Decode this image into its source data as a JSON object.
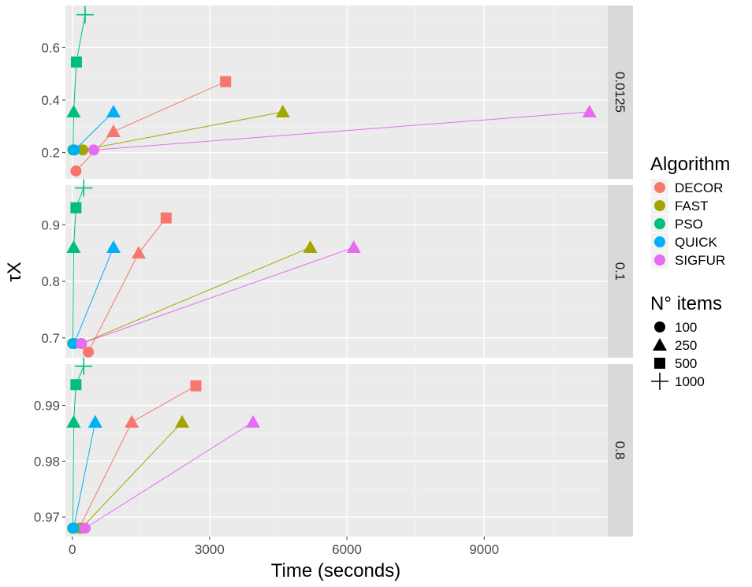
{
  "chart_data": {
    "type": "line",
    "xlabel": "Time (seconds)",
    "ylabel": "τX",
    "xlim": [
      -150,
      11700
    ],
    "x_ticks": [
      0,
      3000,
      6000,
      9000
    ],
    "x_tick_labels": [
      "0",
      "3000",
      "6000",
      "9000"
    ],
    "grid": true,
    "series_colors": {
      "DECOR": "#F8766D",
      "FAST": "#A3A500",
      "PSO": "#00BF7D",
      "QUICK": "#00B0F6",
      "SIGFUR": "#E76BF3"
    },
    "legends": [
      {
        "title": "Algorithm",
        "placement": "right",
        "entries": [
          {
            "label": "DECOR",
            "color": "#F8766D"
          },
          {
            "label": "FAST",
            "color": "#A3A500"
          },
          {
            "label": "PSO",
            "color": "#00BF7D"
          },
          {
            "label": "QUICK",
            "color": "#00B0F6"
          },
          {
            "label": "SIGFUR",
            "color": "#E76BF3"
          }
        ]
      },
      {
        "title": "N° items",
        "placement": "right",
        "entries": [
          {
            "label": "100",
            "shape": "circle"
          },
          {
            "label": "250",
            "shape": "triangle"
          },
          {
            "label": "500",
            "shape": "square"
          },
          {
            "label": "1000",
            "shape": "plus"
          }
        ]
      }
    ],
    "panels": [
      {
        "strip": "0.0125",
        "ylim": [
          0.1,
          0.76
        ],
        "y_ticks": [
          0.2,
          0.4,
          0.6
        ],
        "y_tick_labels": [
          "0.2",
          "0.4",
          "0.6"
        ],
        "series": [
          {
            "name": "DECOR",
            "points": [
              [
                80,
                0.13,
                "100"
              ],
              [
                900,
                0.28,
                "250"
              ],
              [
                3350,
                0.47,
                "500"
              ]
            ]
          },
          {
            "name": "FAST",
            "points": [
              [
                230,
                0.21,
                "100"
              ],
              [
                4600,
                0.355,
                "250"
              ]
            ]
          },
          {
            "name": "PSO",
            "points": [
              [
                15,
                0.21,
                "100"
              ],
              [
                30,
                0.355,
                "250"
              ],
              [
                90,
                0.545,
                "500"
              ],
              [
                280,
                0.725,
                "1000"
              ]
            ]
          },
          {
            "name": "QUICK",
            "points": [
              [
                50,
                0.21,
                "100"
              ],
              [
                900,
                0.355,
                "250"
              ]
            ]
          },
          {
            "name": "SIGFUR",
            "points": [
              [
                470,
                0.21,
                "100"
              ],
              [
                11300,
                0.355,
                "250"
              ]
            ]
          }
        ]
      },
      {
        "strip": "0.1",
        "ylim": [
          0.665,
          0.97
        ],
        "y_ticks": [
          0.7,
          0.8,
          0.9
        ],
        "y_tick_labels": [
          "0.7",
          "0.8",
          "0.9"
        ],
        "series": [
          {
            "name": "DECOR",
            "points": [
              [
                350,
                0.675,
                "100"
              ],
              [
                1450,
                0.85,
                "250"
              ],
              [
                2050,
                0.912,
                "500"
              ]
            ]
          },
          {
            "name": "FAST",
            "points": [
              [
                200,
                0.69,
                "100"
              ],
              [
                5200,
                0.86,
                "250"
              ]
            ]
          },
          {
            "name": "PSO",
            "points": [
              [
                10,
                0.69,
                "100"
              ],
              [
                30,
                0.86,
                "250"
              ],
              [
                80,
                0.93,
                "500"
              ],
              [
                250,
                0.965,
                "1000"
              ]
            ]
          },
          {
            "name": "QUICK",
            "points": [
              [
                40,
                0.69,
                "100"
              ],
              [
                900,
                0.86,
                "250"
              ]
            ]
          },
          {
            "name": "SIGFUR",
            "points": [
              [
                200,
                0.69,
                "100"
              ],
              [
                6150,
                0.86,
                "250"
              ]
            ]
          }
        ]
      },
      {
        "strip": "0.8",
        "ylim": [
          0.9665,
          0.9974
        ],
        "y_ticks": [
          0.97,
          0.98,
          0.99
        ],
        "y_tick_labels": [
          "0.97",
          "0.98",
          "0.99"
        ],
        "series": [
          {
            "name": "DECOR",
            "points": [
              [
                150,
                0.968,
                "100"
              ],
              [
                1300,
                0.987,
                "250"
              ],
              [
                2700,
                0.9935,
                "500"
              ]
            ]
          },
          {
            "name": "FAST",
            "points": [
              [
                200,
                0.968,
                "100"
              ],
              [
                2400,
                0.987,
                "250"
              ]
            ]
          },
          {
            "name": "PSO",
            "points": [
              [
                10,
                0.968,
                "100"
              ],
              [
                30,
                0.987,
                "250"
              ],
              [
                80,
                0.9937,
                "500"
              ],
              [
                250,
                0.997,
                "1000"
              ]
            ]
          },
          {
            "name": "QUICK",
            "points": [
              [
                30,
                0.968,
                "100"
              ],
              [
                500,
                0.987,
                "250"
              ]
            ]
          },
          {
            "name": "SIGFUR",
            "points": [
              [
                280,
                0.968,
                "100"
              ],
              [
                3950,
                0.987,
                "250"
              ]
            ]
          }
        ]
      }
    ]
  }
}
